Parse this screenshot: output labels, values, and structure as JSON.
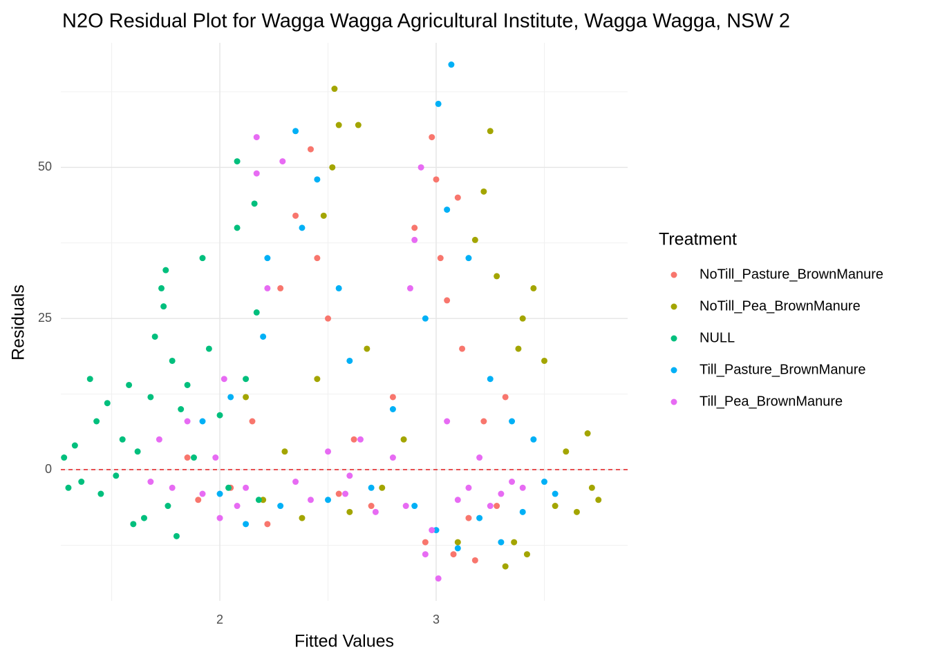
{
  "chart_data": {
    "type": "scatter",
    "title": "N2O Residual Plot for Wagga Wagga Agricultural Institute, Wagga Wagga, NSW 2",
    "x_label": "Fitted Values",
    "y_label": "Residuals",
    "legend_title": "Treatment",
    "legend_position": "right",
    "xlim": [
      1.265,
      3.885
    ],
    "ylim": [
      -21.7,
      70.6
    ],
    "xticks": [
      2,
      3
    ],
    "yticks": [
      0,
      25,
      50
    ],
    "x_minor_grid": [
      1.5,
      2.5,
      3.5
    ],
    "y_minor_grid": [
      -12.5,
      12.5,
      37.5,
      62.5
    ],
    "grid": true,
    "hline": {
      "value": 0,
      "color": "#e41a1c"
    },
    "series": [
      {
        "name": "NoTill_Pasture_BrownManure",
        "color": "#F8766D",
        "x": [
          1.85,
          1.9,
          2.05,
          2.15,
          2.22,
          2.28,
          2.35,
          2.42,
          2.45,
          2.55,
          2.62,
          2.7,
          2.8,
          2.9,
          2.95,
          2.98,
          3.0,
          3.02,
          3.05,
          3.08,
          3.12,
          3.18,
          3.22,
          3.28,
          3.32,
          2.5,
          3.1,
          3.15
        ],
        "values": [
          2,
          -5,
          -3,
          8,
          -9,
          30,
          42,
          53,
          35,
          -4,
          5,
          -6,
          12,
          40,
          -12,
          55,
          48,
          35,
          28,
          -14,
          20,
          -15,
          8,
          -6,
          12,
          25,
          45,
          -8
        ]
      },
      {
        "name": "NoTill_Pea_BrownManure",
        "color": "#A3A500",
        "x": [
          2.12,
          2.2,
          2.3,
          2.38,
          2.45,
          2.52,
          2.53,
          2.55,
          2.6,
          2.64,
          2.68,
          2.75,
          2.85,
          3.1,
          3.18,
          3.22,
          3.25,
          3.28,
          3.32,
          3.38,
          3.42,
          3.45,
          3.5,
          3.55,
          3.6,
          3.65,
          3.7,
          3.72,
          3.75,
          3.4,
          3.36,
          2.48
        ],
        "values": [
          12,
          -5,
          3,
          -8,
          15,
          50,
          63,
          57,
          -7,
          57,
          20,
          -3,
          5,
          -12,
          38,
          46,
          56,
          32,
          -16,
          20,
          -14,
          30,
          18,
          -6,
          3,
          -7,
          6,
          -3,
          -5,
          25,
          -12,
          42
        ]
      },
      {
        "name": "NULL",
        "color": "#00BF7D",
        "x": [
          1.28,
          1.3,
          1.33,
          1.36,
          1.4,
          1.43,
          1.45,
          1.48,
          1.52,
          1.55,
          1.58,
          1.62,
          1.65,
          1.68,
          1.7,
          1.73,
          1.75,
          1.76,
          1.78,
          1.8,
          1.82,
          1.85,
          1.88,
          1.92,
          1.95,
          2.0,
          2.04,
          2.08,
          2.08,
          2.12,
          2.16,
          2.17,
          2.18,
          1.6,
          1.74
        ],
        "values": [
          2,
          -3,
          4,
          -2,
          15,
          8,
          -4,
          11,
          -1,
          5,
          14,
          3,
          -8,
          12,
          22,
          30,
          33,
          -6,
          18,
          -11,
          10,
          14,
          2,
          35,
          20,
          9,
          -3,
          51,
          40,
          15,
          44,
          26,
          -5,
          -9,
          27
        ]
      },
      {
        "name": "Till_Pasture_BrownManure",
        "color": "#00B0F6",
        "x": [
          1.92,
          2.0,
          2.05,
          2.12,
          2.2,
          2.28,
          2.35,
          2.38,
          2.45,
          2.5,
          2.55,
          2.6,
          2.7,
          2.8,
          2.9,
          2.95,
          3.01,
          3.05,
          3.07,
          3.1,
          3.15,
          3.2,
          3.25,
          3.3,
          3.35,
          3.4,
          3.45,
          3.5,
          3.55,
          2.22,
          3.0
        ],
        "values": [
          8,
          -4,
          12,
          -9,
          22,
          -6,
          56,
          40,
          48,
          -5,
          30,
          18,
          -3,
          10,
          -6,
          25,
          60.5,
          43,
          67,
          -13,
          35,
          -8,
          15,
          -12,
          8,
          -7,
          5,
          -2,
          -4,
          35,
          -10
        ]
      },
      {
        "name": "Till_Pea_BrownManure",
        "color": "#E76BF3",
        "x": [
          1.68,
          1.72,
          1.78,
          1.85,
          1.92,
          1.98,
          2.02,
          2.08,
          2.12,
          2.17,
          2.17,
          2.22,
          2.29,
          2.35,
          2.42,
          2.5,
          2.58,
          2.65,
          2.72,
          2.8,
          2.86,
          2.9,
          2.93,
          2.98,
          3.01,
          3.05,
          3.1,
          3.15,
          3.2,
          3.25,
          3.3,
          3.35,
          3.4,
          2.0,
          2.6,
          2.88,
          2.95
        ],
        "values": [
          -2,
          5,
          -3,
          8,
          -4,
          2,
          15,
          -6,
          -3,
          55,
          49,
          30,
          51,
          -2,
          -5,
          3,
          -4,
          5,
          -7,
          2,
          -6,
          38,
          50,
          -10,
          -18,
          8,
          -5,
          -3,
          2,
          -6,
          -4,
          -2,
          -3,
          -8,
          -1,
          30,
          -14
        ]
      }
    ]
  }
}
